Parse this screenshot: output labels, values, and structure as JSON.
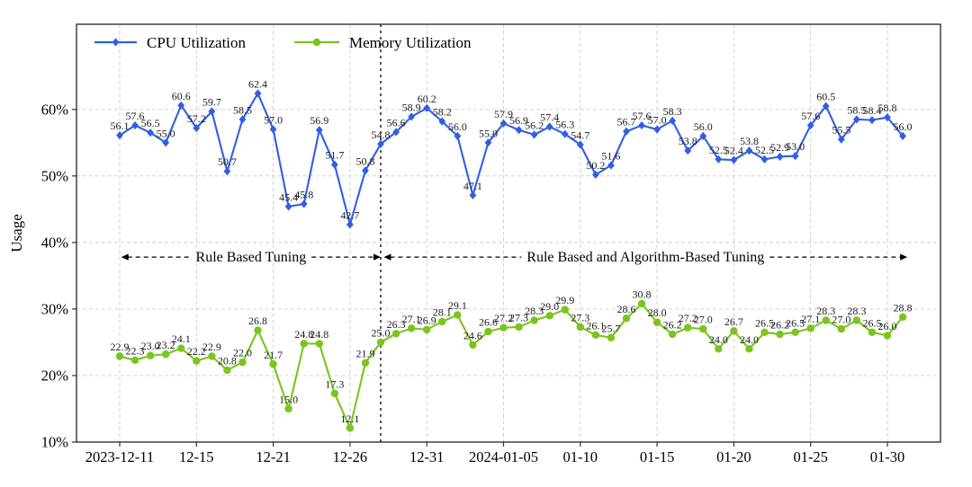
{
  "chart_data": {
    "type": "line",
    "title": "",
    "ylabel": "Usage",
    "n_points": 52,
    "x_tick_labels": [
      "2023-12-11",
      "12-15",
      "12-21",
      "12-26",
      "12-31",
      "2024-01-05",
      "01-10",
      "01-15",
      "01-20",
      "01-25",
      "01-30"
    ],
    "x_tick_indices": [
      0,
      5,
      10,
      15,
      20,
      25,
      30,
      35,
      40,
      45,
      50
    ],
    "yticks": [
      10,
      20,
      30,
      40,
      50,
      60
    ],
    "ytick_labels": [
      "10%",
      "20%",
      "30%",
      "40%",
      "50%",
      "60%"
    ],
    "ylim": [
      10,
      72.8
    ],
    "grid": "dashed-both",
    "legend_position": "top-left-horizontal",
    "series": [
      {
        "name": "CPU Utilization",
        "color": "#2f5fe4",
        "marker": "diamond",
        "values": [
          56.1,
          57.6,
          56.5,
          55.0,
          60.6,
          57.2,
          59.7,
          50.7,
          58.5,
          62.4,
          57.0,
          45.4,
          45.8,
          56.9,
          51.7,
          42.7,
          50.8,
          54.8,
          56.6,
          58.9,
          60.2,
          58.2,
          56.0,
          47.1,
          55.0,
          57.9,
          56.9,
          56.2,
          57.4,
          56.3,
          54.7,
          50.2,
          51.6,
          56.7,
          57.6,
          57.0,
          58.3,
          53.8,
          56.0,
          52.5,
          52.4,
          53.8,
          52.5,
          52.9,
          53.0,
          57.6,
          60.5,
          55.5,
          58.5,
          58.4,
          58.8,
          56.0
        ]
      },
      {
        "name": "Memory Utilization",
        "color": "#79c51e",
        "marker": "circle",
        "values": [
          22.9,
          22.3,
          23.0,
          23.2,
          24.1,
          22.2,
          22.9,
          20.8,
          22.0,
          26.8,
          21.7,
          15.0,
          24.8,
          24.8,
          17.3,
          12.1,
          21.9,
          25.0,
          26.3,
          27.1,
          26.9,
          28.1,
          29.1,
          24.6,
          26.6,
          27.2,
          27.3,
          28.3,
          29.0,
          29.9,
          27.3,
          26.1,
          25.7,
          28.6,
          30.8,
          28.0,
          26.2,
          27.2,
          27.0,
          24.0,
          26.7,
          24.0,
          26.5,
          26.2,
          26.5,
          27.1,
          28.3,
          27.0,
          28.3,
          26.5,
          26.0,
          28.8
        ]
      }
    ],
    "divider": {
      "index": 17,
      "style": "dashed-vertical"
    },
    "annotations": [
      {
        "text": "Rule Based  Tuning",
        "from_index": 0.1,
        "to_index": 17,
        "y_value": 37.8
      },
      {
        "text": "Rule Based and Algorithm-Based Tuning",
        "from_index": 17.2,
        "to_index": 51.3,
        "y_value": 37.8
      }
    ],
    "colors": {
      "grid": "#cccccc",
      "border": "#333333",
      "divider": "#111111",
      "label_text": "#1b1b1b",
      "tick_text": "#000000"
    }
  }
}
